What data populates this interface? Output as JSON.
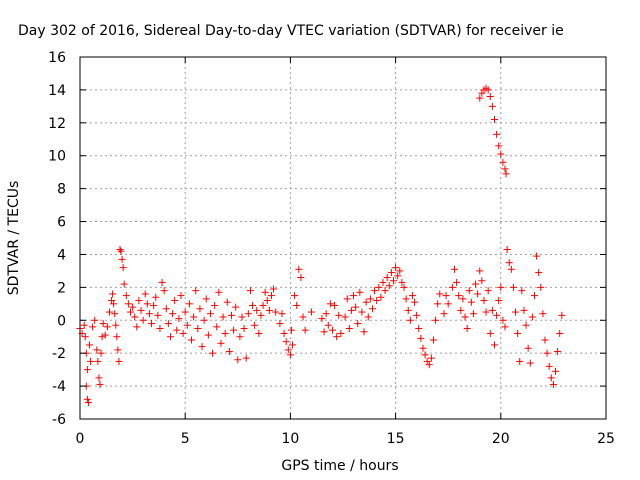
{
  "chart_data": {
    "type": "scatter",
    "title": "Day 302 of 2016, Sidereal Day-to-day VTEC variation (SDTVAR) for receiver ie",
    "xlabel": "GPS time / hours",
    "ylabel": "SDTVAR / TECUs",
    "xlim": [
      0,
      25
    ],
    "ylim": [
      -6,
      16
    ],
    "xticks": [
      0,
      5,
      10,
      15,
      20,
      25
    ],
    "yticks": [
      -6,
      -4,
      -2,
      0,
      2,
      4,
      6,
      8,
      10,
      12,
      14,
      16
    ],
    "xtick_labels": [
      "0",
      "5",
      "10",
      "15",
      "20",
      "25"
    ],
    "ytick_labels": [
      "-6",
      "-4",
      "-2",
      "0",
      "2",
      "4",
      "6",
      "8",
      "10",
      "12",
      "14",
      "16"
    ],
    "grid": true,
    "marker": "+",
    "color": "#ff0000",
    "series": [
      {
        "name": "SDTVAR",
        "points": [
          [
            0.0,
            -0.5
          ],
          [
            0.1,
            -0.8
          ],
          [
            0.2,
            -0.3
          ],
          [
            0.25,
            -1.0
          ],
          [
            0.3,
            -2.0
          ],
          [
            0.35,
            -3.0
          ],
          [
            0.3,
            -4.0
          ],
          [
            0.35,
            -4.8
          ],
          [
            0.4,
            -5.0
          ],
          [
            0.45,
            -1.5
          ],
          [
            0.5,
            -2.5
          ],
          [
            0.6,
            -0.4
          ],
          [
            0.7,
            0.0
          ],
          [
            0.8,
            -1.8
          ],
          [
            0.85,
            -2.5
          ],
          [
            0.9,
            -3.5
          ],
          [
            0.95,
            -3.9
          ],
          [
            1.0,
            -2.0
          ],
          [
            1.05,
            -1.0
          ],
          [
            1.1,
            -0.2
          ],
          [
            1.2,
            -0.9
          ],
          [
            1.3,
            -0.4
          ],
          [
            1.4,
            0.5
          ],
          [
            1.5,
            1.2
          ],
          [
            1.55,
            1.6
          ],
          [
            1.6,
            1.0
          ],
          [
            1.65,
            0.4
          ],
          [
            1.7,
            -0.3
          ],
          [
            1.75,
            -1.0
          ],
          [
            1.8,
            -1.8
          ],
          [
            1.85,
            -2.5
          ],
          [
            1.9,
            4.3
          ],
          [
            1.95,
            4.2
          ],
          [
            2.0,
            3.7
          ],
          [
            2.05,
            3.2
          ],
          [
            2.1,
            2.2
          ],
          [
            2.2,
            1.5
          ],
          [
            2.3,
            1.0
          ],
          [
            2.4,
            0.5
          ],
          [
            2.5,
            0.8
          ],
          [
            2.6,
            0.2
          ],
          [
            2.7,
            -0.4
          ],
          [
            2.8,
            1.2
          ],
          [
            2.9,
            0.6
          ],
          [
            3.0,
            0.0
          ],
          [
            3.1,
            1.6
          ],
          [
            3.2,
            1.0
          ],
          [
            3.3,
            0.4
          ],
          [
            3.4,
            -0.2
          ],
          [
            3.5,
            0.9
          ],
          [
            3.6,
            1.4
          ],
          [
            3.7,
            0.3
          ],
          [
            3.8,
            -0.5
          ],
          [
            3.9,
            2.3
          ],
          [
            4.0,
            1.8
          ],
          [
            4.1,
            0.7
          ],
          [
            4.2,
            -0.2
          ],
          [
            4.3,
            -1.0
          ],
          [
            4.4,
            0.4
          ],
          [
            4.5,
            1.2
          ],
          [
            4.6,
            -0.6
          ],
          [
            4.7,
            0.1
          ],
          [
            4.8,
            1.5
          ],
          [
            4.9,
            -0.8
          ],
          [
            5.0,
            0.5
          ],
          [
            5.1,
            -0.3
          ],
          [
            5.2,
            1.0
          ],
          [
            5.3,
            -1.2
          ],
          [
            5.4,
            0.2
          ],
          [
            5.5,
            1.8
          ],
          [
            5.6,
            -0.5
          ],
          [
            5.7,
            0.7
          ],
          [
            5.8,
            -1.6
          ],
          [
            5.9,
            0.0
          ],
          [
            6.0,
            1.3
          ],
          [
            6.1,
            -0.9
          ],
          [
            6.2,
            0.4
          ],
          [
            6.3,
            -2.0
          ],
          [
            6.4,
            0.9
          ],
          [
            6.5,
            -0.4
          ],
          [
            6.6,
            1.7
          ],
          [
            6.7,
            -1.4
          ],
          [
            6.8,
            0.2
          ],
          [
            6.9,
            -0.8
          ],
          [
            7.0,
            1.1
          ],
          [
            7.1,
            -1.9
          ],
          [
            7.2,
            0.3
          ],
          [
            7.3,
            -0.6
          ],
          [
            7.4,
            0.8
          ],
          [
            7.5,
            -2.4
          ],
          [
            7.6,
            -1.0
          ],
          [
            7.7,
            0.2
          ],
          [
            7.8,
            -0.5
          ],
          [
            7.9,
            -2.3
          ],
          [
            8.0,
            0.4
          ],
          [
            8.1,
            1.8
          ],
          [
            8.2,
            0.9
          ],
          [
            8.3,
            -0.3
          ],
          [
            8.4,
            0.6
          ],
          [
            8.5,
            -0.8
          ],
          [
            8.6,
            0.3
          ],
          [
            8.7,
            0.9
          ],
          [
            8.8,
            1.7
          ],
          [
            8.9,
            1.2
          ],
          [
            9.0,
            0.6
          ],
          [
            9.1,
            1.5
          ],
          [
            9.2,
            1.9
          ],
          [
            9.3,
            0.5
          ],
          [
            9.5,
            -0.2
          ],
          [
            9.6,
            0.4
          ],
          [
            9.7,
            -0.8
          ],
          [
            9.8,
            -1.3
          ],
          [
            9.9,
            -1.8
          ],
          [
            10.0,
            -2.1
          ],
          [
            10.05,
            -0.6
          ],
          [
            10.1,
            -1.5
          ],
          [
            10.2,
            1.5
          ],
          [
            10.3,
            0.9
          ],
          [
            10.4,
            3.1
          ],
          [
            10.5,
            2.6
          ],
          [
            10.6,
            0.2
          ],
          [
            10.7,
            -0.6
          ],
          [
            11.0,
            0.5
          ],
          [
            11.5,
            0.1
          ],
          [
            11.6,
            -0.7
          ],
          [
            11.7,
            0.4
          ],
          [
            11.8,
            -0.3
          ],
          [
            11.9,
            1.0
          ],
          [
            12.0,
            -0.6
          ],
          [
            12.1,
            0.9
          ],
          [
            12.2,
            -1.0
          ],
          [
            12.3,
            0.3
          ],
          [
            12.4,
            -0.8
          ],
          [
            12.6,
            0.2
          ],
          [
            12.7,
            1.3
          ],
          [
            12.8,
            -0.5
          ],
          [
            12.9,
            0.6
          ],
          [
            13.0,
            1.5
          ],
          [
            13.1,
            0.8
          ],
          [
            13.2,
            -0.2
          ],
          [
            13.3,
            1.7
          ],
          [
            13.4,
            0.5
          ],
          [
            13.5,
            -0.7
          ],
          [
            13.6,
            1.1
          ],
          [
            13.7,
            0.2
          ],
          [
            13.8,
            1.3
          ],
          [
            13.9,
            0.7
          ],
          [
            14.0,
            1.8
          ],
          [
            14.1,
            1.2
          ],
          [
            14.2,
            2.0
          ],
          [
            14.3,
            1.4
          ],
          [
            14.4,
            2.3
          ],
          [
            14.5,
            1.8
          ],
          [
            14.6,
            2.6
          ],
          [
            14.7,
            2.1
          ],
          [
            14.8,
            2.9
          ],
          [
            14.9,
            2.4
          ],
          [
            15.0,
            3.2
          ],
          [
            15.1,
            2.7
          ],
          [
            15.2,
            3.0
          ],
          [
            15.3,
            2.3
          ],
          [
            15.4,
            2.0
          ],
          [
            15.5,
            1.3
          ],
          [
            15.6,
            0.6
          ],
          [
            15.7,
            0.0
          ],
          [
            15.8,
            1.5
          ],
          [
            15.9,
            1.1
          ],
          [
            16.0,
            0.3
          ],
          [
            16.1,
            -0.5
          ],
          [
            16.2,
            -1.1
          ],
          [
            16.3,
            -1.7
          ],
          [
            16.4,
            -2.1
          ],
          [
            16.5,
            -2.5
          ],
          [
            16.6,
            -2.7
          ],
          [
            16.7,
            -2.3
          ],
          [
            16.8,
            -1.2
          ],
          [
            16.9,
            0.0
          ],
          [
            17.0,
            1.0
          ],
          [
            17.1,
            1.6
          ],
          [
            17.3,
            0.4
          ],
          [
            17.4,
            1.5
          ],
          [
            17.5,
            1.0
          ],
          [
            17.7,
            2.0
          ],
          [
            17.8,
            3.1
          ],
          [
            17.9,
            2.3
          ],
          [
            18.0,
            1.5
          ],
          [
            18.1,
            0.6
          ],
          [
            18.2,
            1.3
          ],
          [
            18.3,
            0.2
          ],
          [
            18.4,
            -0.5
          ],
          [
            18.5,
            1.8
          ],
          [
            18.6,
            1.1
          ],
          [
            18.7,
            0.4
          ],
          [
            18.8,
            2.2
          ],
          [
            18.9,
            1.6
          ],
          [
            19.0,
            3.0
          ],
          [
            19.1,
            2.4
          ],
          [
            19.2,
            1.2
          ],
          [
            19.3,
            0.5
          ],
          [
            19.4,
            1.8
          ],
          [
            19.5,
            -0.8
          ],
          [
            19.6,
            0.6
          ],
          [
            19.7,
            -1.5
          ],
          [
            19.8,
            0.3
          ],
          [
            19.9,
            1.2
          ],
          [
            20.0,
            2.0
          ],
          [
            20.1,
            0.0
          ],
          [
            20.2,
            -0.4
          ],
          [
            20.3,
            4.3
          ],
          [
            20.4,
            3.5
          ],
          [
            20.5,
            3.1
          ],
          [
            20.6,
            2.0
          ],
          [
            20.7,
            0.5
          ],
          [
            20.8,
            -0.8
          ],
          [
            20.9,
            -2.5
          ],
          [
            21.0,
            1.8
          ],
          [
            21.1,
            0.6
          ],
          [
            21.2,
            -0.3
          ],
          [
            21.3,
            -1.7
          ],
          [
            21.4,
            -2.6
          ],
          [
            21.5,
            0.2
          ],
          [
            21.6,
            1.5
          ],
          [
            21.7,
            3.9
          ],
          [
            21.8,
            2.9
          ],
          [
            21.9,
            2.0
          ],
          [
            22.0,
            0.4
          ],
          [
            22.1,
            -1.2
          ],
          [
            22.2,
            -2.0
          ],
          [
            22.3,
            -2.8
          ],
          [
            22.4,
            -3.5
          ],
          [
            22.5,
            -3.9
          ],
          [
            22.6,
            -3.1
          ],
          [
            22.7,
            -1.9
          ],
          [
            22.8,
            -0.8
          ],
          [
            22.9,
            0.3
          ],
          [
            19.0,
            13.5
          ],
          [
            19.1,
            13.8
          ],
          [
            19.2,
            14.0
          ],
          [
            19.3,
            14.1
          ],
          [
            19.4,
            14.0
          ],
          [
            19.5,
            13.6
          ],
          [
            19.6,
            13.0
          ],
          [
            19.7,
            12.2
          ],
          [
            19.8,
            11.3
          ],
          [
            19.9,
            10.6
          ],
          [
            20.0,
            10.1
          ],
          [
            20.1,
            9.6
          ],
          [
            20.2,
            9.2
          ],
          [
            20.25,
            8.9
          ]
        ]
      }
    ]
  }
}
